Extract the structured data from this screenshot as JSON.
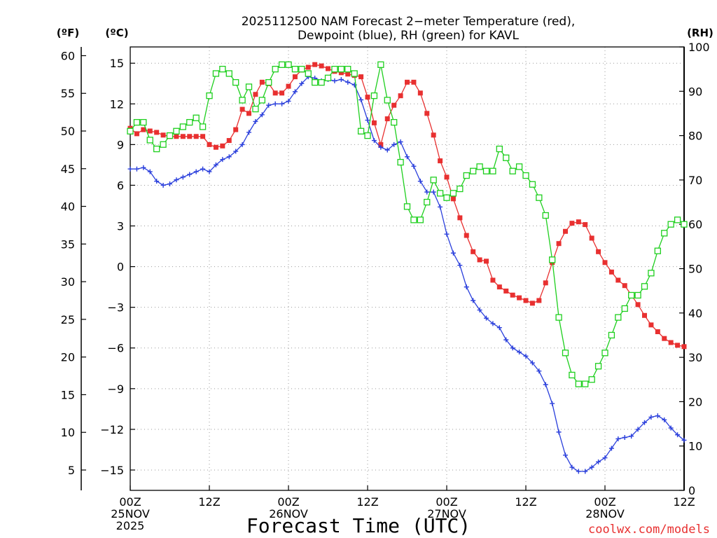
{
  "chart_data": {
    "type": "line",
    "title_line1": "2025112500 NAM Forecast 2−meter Temperature (red),",
    "title_line2": "Dewpoint (blue), RH (green) for KAVL",
    "left_unit_f": "(ºF)",
    "left_unit_c": "(ºC)",
    "right_unit": "(RH)",
    "xlabel": "Forecast Time (UTC)",
    "credit": "coolwx.com/models",
    "x_range_hours": [
      0,
      84
    ],
    "celsius_range": [
      -16.5,
      16.2
    ],
    "rh_range": [
      0,
      100
    ],
    "celsius_ticks": [
      "15",
      "12",
      "9",
      "6",
      "3",
      "0",
      "−3",
      "−6",
      "−9",
      "−12",
      "−15"
    ],
    "fahrenheit_ticks": [
      "60",
      "55",
      "50",
      "45",
      "40",
      "35",
      "30",
      "25",
      "20",
      "15",
      "10",
      "5"
    ],
    "rh_ticks": [
      "100",
      "90",
      "80",
      "70",
      "60",
      "50",
      "40",
      "30",
      "20",
      "10",
      "0"
    ],
    "x_ticks": [
      {
        "hour": 0,
        "lines": [
          "00Z",
          "25NOV",
          "2025"
        ]
      },
      {
        "hour": 12,
        "lines": [
          "12Z"
        ]
      },
      {
        "hour": 24,
        "lines": [
          "00Z",
          "26NOV"
        ]
      },
      {
        "hour": 36,
        "lines": [
          "12Z"
        ]
      },
      {
        "hour": 48,
        "lines": [
          "00Z",
          "27NOV"
        ]
      },
      {
        "hour": 60,
        "lines": [
          "12Z"
        ]
      },
      {
        "hour": 72,
        "lines": [
          "00Z",
          "28NOV"
        ]
      },
      {
        "hour": 84,
        "lines": [
          "12Z"
        ]
      }
    ],
    "series": [
      {
        "name": "Temperature",
        "unit": "C",
        "color": "#e83030",
        "marker": "square-filled",
        "points": [
          [
            0,
            10.2
          ],
          [
            1,
            9.8
          ],
          [
            2,
            10.1
          ],
          [
            3,
            10.0
          ],
          [
            4,
            9.9
          ],
          [
            5,
            9.7
          ],
          [
            6,
            9.6
          ],
          [
            7,
            9.6
          ],
          [
            8,
            9.6
          ],
          [
            9,
            9.6
          ],
          [
            10,
            9.6
          ],
          [
            11,
            9.6
          ],
          [
            12,
            9.0
          ],
          [
            13,
            8.8
          ],
          [
            14,
            8.9
          ],
          [
            15,
            9.3
          ],
          [
            16,
            10.1
          ],
          [
            17,
            11.6
          ],
          [
            18,
            11.3
          ],
          [
            19,
            12.7
          ],
          [
            20,
            13.6
          ],
          [
            21,
            13.5
          ],
          [
            22,
            12.8
          ],
          [
            23,
            12.8
          ],
          [
            24,
            13.3
          ],
          [
            25,
            14.0
          ],
          [
            26,
            14.5
          ],
          [
            27,
            14.7
          ],
          [
            28,
            14.9
          ],
          [
            29,
            14.8
          ],
          [
            30,
            14.6
          ],
          [
            31,
            14.4
          ],
          [
            32,
            14.3
          ],
          [
            33,
            14.2
          ],
          [
            34,
            14.1
          ],
          [
            35,
            14.0
          ],
          [
            36,
            12.5
          ],
          [
            37,
            10.6
          ],
          [
            38,
            9.0
          ],
          [
            39,
            10.9
          ],
          [
            40,
            11.9
          ],
          [
            41,
            12.6
          ],
          [
            42,
            13.6
          ],
          [
            43,
            13.6
          ],
          [
            44,
            12.8
          ],
          [
            45,
            11.3
          ],
          [
            46,
            9.7
          ],
          [
            47,
            7.8
          ],
          [
            48,
            6.6
          ],
          [
            49,
            5.0
          ],
          [
            50,
            3.6
          ],
          [
            51,
            2.3
          ],
          [
            52,
            1.1
          ],
          [
            53,
            0.5
          ],
          [
            54,
            0.4
          ],
          [
            55,
            -1.0
          ],
          [
            56,
            -1.5
          ],
          [
            57,
            -1.8
          ],
          [
            58,
            -2.1
          ],
          [
            59,
            -2.3
          ],
          [
            60,
            -2.5
          ],
          [
            61,
            -2.7
          ],
          [
            62,
            -2.5
          ],
          [
            63,
            -1.2
          ],
          [
            64,
            0.3
          ],
          [
            65,
            1.7
          ],
          [
            66,
            2.6
          ],
          [
            67,
            3.2
          ],
          [
            68,
            3.3
          ],
          [
            69,
            3.1
          ],
          [
            70,
            2.1
          ],
          [
            71,
            1.1
          ],
          [
            72,
            0.3
          ],
          [
            73,
            -0.4
          ],
          [
            74,
            -1.0
          ],
          [
            75,
            -1.4
          ],
          [
            76,
            -2.1
          ],
          [
            77,
            -2.8
          ],
          [
            78,
            -3.6
          ],
          [
            79,
            -4.3
          ],
          [
            80,
            -4.8
          ],
          [
            81,
            -5.3
          ],
          [
            82,
            -5.6
          ],
          [
            83,
            -5.8
          ],
          [
            84,
            -5.9
          ]
        ]
      },
      {
        "name": "Dewpoint",
        "unit": "C",
        "color": "#2a3fdc",
        "marker": "plus",
        "points": [
          [
            0,
            7.2
          ],
          [
            1,
            7.2
          ],
          [
            2,
            7.3
          ],
          [
            3,
            7.0
          ],
          [
            4,
            6.3
          ],
          [
            5,
            6.0
          ],
          [
            6,
            6.1
          ],
          [
            7,
            6.4
          ],
          [
            8,
            6.6
          ],
          [
            9,
            6.8
          ],
          [
            10,
            7.0
          ],
          [
            11,
            7.2
          ],
          [
            12,
            7.0
          ],
          [
            13,
            7.5
          ],
          [
            14,
            7.9
          ],
          [
            15,
            8.1
          ],
          [
            16,
            8.5
          ],
          [
            17,
            9.0
          ],
          [
            18,
            9.9
          ],
          [
            19,
            10.7
          ],
          [
            20,
            11.2
          ],
          [
            21,
            11.9
          ],
          [
            22,
            12.0
          ],
          [
            23,
            12.0
          ],
          [
            24,
            12.2
          ],
          [
            25,
            12.9
          ],
          [
            26,
            13.5
          ],
          [
            27,
            14.0
          ],
          [
            28,
            13.9
          ],
          [
            29,
            13.7
          ],
          [
            30,
            13.8
          ],
          [
            31,
            13.7
          ],
          [
            32,
            13.8
          ],
          [
            33,
            13.6
          ],
          [
            34,
            13.4
          ],
          [
            35,
            12.3
          ],
          [
            36,
            10.8
          ],
          [
            37,
            9.3
          ],
          [
            38,
            8.8
          ],
          [
            39,
            8.6
          ],
          [
            40,
            9.0
          ],
          [
            41,
            9.2
          ],
          [
            42,
            8.1
          ],
          [
            43,
            7.4
          ],
          [
            44,
            6.3
          ],
          [
            45,
            5.5
          ],
          [
            46,
            5.5
          ],
          [
            47,
            4.4
          ],
          [
            48,
            2.4
          ],
          [
            49,
            1.0
          ],
          [
            50,
            0.1
          ],
          [
            51,
            -1.5
          ],
          [
            52,
            -2.5
          ],
          [
            53,
            -3.2
          ],
          [
            54,
            -3.8
          ],
          [
            55,
            -4.2
          ],
          [
            56,
            -4.5
          ],
          [
            57,
            -5.4
          ],
          [
            58,
            -6.0
          ],
          [
            59,
            -6.3
          ],
          [
            60,
            -6.6
          ],
          [
            61,
            -7.1
          ],
          [
            62,
            -7.7
          ],
          [
            63,
            -8.7
          ],
          [
            64,
            -10.1
          ],
          [
            65,
            -12.2
          ],
          [
            66,
            -13.9
          ],
          [
            67,
            -14.8
          ],
          [
            68,
            -15.1
          ],
          [
            69,
            -15.1
          ],
          [
            70,
            -14.8
          ],
          [
            71,
            -14.4
          ],
          [
            72,
            -14.1
          ],
          [
            73,
            -13.4
          ],
          [
            74,
            -12.7
          ],
          [
            75,
            -12.6
          ],
          [
            76,
            -12.5
          ],
          [
            77,
            -12.0
          ],
          [
            78,
            -11.5
          ],
          [
            79,
            -11.1
          ],
          [
            80,
            -11.0
          ],
          [
            81,
            -11.3
          ],
          [
            82,
            -11.9
          ],
          [
            83,
            -12.4
          ],
          [
            84,
            -12.8
          ]
        ]
      },
      {
        "name": "RH",
        "unit": "%",
        "color": "#1ecf1e",
        "marker": "square-open",
        "points": [
          [
            0,
            81
          ],
          [
            1,
            83
          ],
          [
            2,
            83
          ],
          [
            3,
            79
          ],
          [
            4,
            77
          ],
          [
            5,
            78
          ],
          [
            6,
            80
          ],
          [
            7,
            81
          ],
          [
            8,
            82
          ],
          [
            9,
            83
          ],
          [
            10,
            84
          ],
          [
            11,
            82
          ],
          [
            12,
            89
          ],
          [
            13,
            94
          ],
          [
            14,
            95
          ],
          [
            15,
            94
          ],
          [
            16,
            92
          ],
          [
            17,
            88
          ],
          [
            18,
            91
          ],
          [
            19,
            86
          ],
          [
            20,
            88
          ],
          [
            21,
            92
          ],
          [
            22,
            95
          ],
          [
            23,
            96
          ],
          [
            24,
            96
          ],
          [
            25,
            95
          ],
          [
            26,
            95
          ],
          [
            27,
            94
          ],
          [
            28,
            92
          ],
          [
            29,
            92
          ],
          [
            30,
            93
          ],
          [
            31,
            95
          ],
          [
            32,
            95
          ],
          [
            33,
            95
          ],
          [
            34,
            94
          ],
          [
            35,
            81
          ],
          [
            36,
            80
          ],
          [
            37,
            89
          ],
          [
            38,
            96
          ],
          [
            39,
            88
          ],
          [
            40,
            83
          ],
          [
            41,
            74
          ],
          [
            42,
            64
          ],
          [
            43,
            61
          ],
          [
            44,
            61
          ],
          [
            45,
            65
          ],
          [
            46,
            70
          ],
          [
            47,
            67
          ],
          [
            48,
            66
          ],
          [
            49,
            67
          ],
          [
            50,
            68
          ],
          [
            51,
            71
          ],
          [
            52,
            72
          ],
          [
            53,
            73
          ],
          [
            54,
            72
          ],
          [
            55,
            72
          ],
          [
            56,
            77
          ],
          [
            57,
            75
          ],
          [
            58,
            72
          ],
          [
            59,
            73
          ],
          [
            60,
            71
          ],
          [
            61,
            69
          ],
          [
            62,
            66
          ],
          [
            63,
            62
          ],
          [
            64,
            52
          ],
          [
            65,
            39
          ],
          [
            66,
            31
          ],
          [
            67,
            26
          ],
          [
            68,
            24
          ],
          [
            69,
            24
          ],
          [
            70,
            25
          ],
          [
            71,
            28
          ],
          [
            72,
            31
          ],
          [
            73,
            35
          ],
          [
            74,
            39
          ],
          [
            75,
            41
          ],
          [
            76,
            44
          ],
          [
            77,
            44
          ],
          [
            78,
            46
          ],
          [
            79,
            49
          ],
          [
            80,
            54
          ],
          [
            81,
            58
          ],
          [
            82,
            60
          ],
          [
            83,
            61
          ],
          [
            84,
            60
          ]
        ]
      }
    ]
  }
}
